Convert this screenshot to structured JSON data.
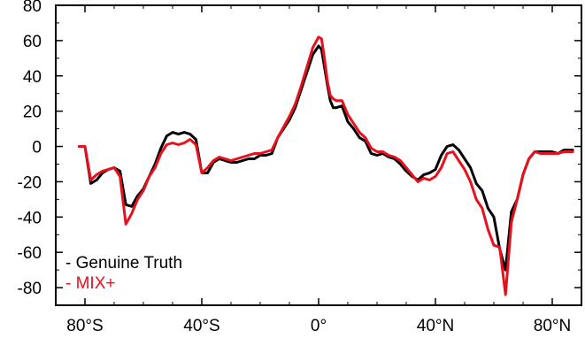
{
  "chart_data": {
    "type": "line",
    "title": "",
    "xlabel": "",
    "ylabel": "",
    "xlim": [
      -90,
      90
    ],
    "ylim": [
      -90,
      80
    ],
    "x_ticks": [
      -80,
      -40,
      0,
      40,
      80
    ],
    "x_tick_labels": [
      "80°S",
      "40°S",
      "0°",
      "40°N",
      "80°N"
    ],
    "y_ticks": [
      80,
      60,
      40,
      20,
      0,
      -20,
      -40,
      -60,
      -80
    ],
    "y_tick_labels": [
      "80",
      "60",
      "40",
      "20",
      "0",
      "-20",
      "-40",
      "-60",
      "-80"
    ],
    "grid": false,
    "legend_position": "bottom-left",
    "series": [
      {
        "name": "Genuine Truth",
        "color": "#000000",
        "points": [
          [
            -82,
            0
          ],
          [
            -80,
            0
          ],
          [
            -78,
            -21
          ],
          [
            -76,
            -19
          ],
          [
            -74,
            -15
          ],
          [
            -72,
            -13
          ],
          [
            -70,
            -12
          ],
          [
            -68,
            -14
          ],
          [
            -66,
            -33
          ],
          [
            -64,
            -34
          ],
          [
            -62,
            -28
          ],
          [
            -60,
            -24
          ],
          [
            -58,
            -17
          ],
          [
            -56,
            -10
          ],
          [
            -54,
            -1
          ],
          [
            -52,
            6
          ],
          [
            -50,
            8
          ],
          [
            -48,
            7
          ],
          [
            -46,
            8
          ],
          [
            -44,
            7
          ],
          [
            -42,
            4
          ],
          [
            -40,
            -15
          ],
          [
            -38,
            -15
          ],
          [
            -36,
            -9
          ],
          [
            -34,
            -7
          ],
          [
            -32,
            -8
          ],
          [
            -30,
            -9
          ],
          [
            -28,
            -9
          ],
          [
            -26,
            -8
          ],
          [
            -24,
            -7
          ],
          [
            -22,
            -7
          ],
          [
            -20,
            -5
          ],
          [
            -18,
            -5
          ],
          [
            -16,
            -4
          ],
          [
            -14,
            5
          ],
          [
            -12,
            10
          ],
          [
            -10,
            15
          ],
          [
            -8,
            22
          ],
          [
            -6,
            32
          ],
          [
            -4,
            42
          ],
          [
            -2,
            52
          ],
          [
            0,
            57
          ],
          [
            1,
            55
          ],
          [
            2,
            45
          ],
          [
            3,
            35
          ],
          [
            4,
            26
          ],
          [
            5,
            22
          ],
          [
            6,
            22
          ],
          [
            8,
            23
          ],
          [
            10,
            14
          ],
          [
            12,
            10
          ],
          [
            14,
            5
          ],
          [
            16,
            3
          ],
          [
            18,
            -4
          ],
          [
            20,
            -5
          ],
          [
            22,
            -4
          ],
          [
            24,
            -6
          ],
          [
            26,
            -7
          ],
          [
            28,
            -10
          ],
          [
            30,
            -14
          ],
          [
            32,
            -17
          ],
          [
            34,
            -19
          ],
          [
            36,
            -16
          ],
          [
            38,
            -15
          ],
          [
            40,
            -13
          ],
          [
            42,
            -5
          ],
          [
            44,
            0
          ],
          [
            46,
            1
          ],
          [
            48,
            -2
          ],
          [
            50,
            -7
          ],
          [
            52,
            -12
          ],
          [
            54,
            -21
          ],
          [
            56,
            -25
          ],
          [
            58,
            -35
          ],
          [
            60,
            -40
          ],
          [
            62,
            -58
          ],
          [
            64,
            -70
          ],
          [
            66,
            -37
          ],
          [
            68,
            -30
          ],
          [
            70,
            -16
          ],
          [
            72,
            -7
          ],
          [
            74,
            -3
          ],
          [
            76,
            -3
          ],
          [
            78,
            -3
          ],
          [
            80,
            -3
          ],
          [
            82,
            -4
          ],
          [
            84,
            -2
          ],
          [
            87,
            -2
          ]
        ]
      },
      {
        "name": "MIX+",
        "color": "#e8101c",
        "points": [
          [
            -82,
            0
          ],
          [
            -80,
            0
          ],
          [
            -78,
            -19
          ],
          [
            -76,
            -16
          ],
          [
            -74,
            -14
          ],
          [
            -72,
            -13
          ],
          [
            -70,
            -12
          ],
          [
            -68,
            -17
          ],
          [
            -66,
            -44
          ],
          [
            -64,
            -38
          ],
          [
            -62,
            -30
          ],
          [
            -60,
            -25
          ],
          [
            -58,
            -17
          ],
          [
            -56,
            -12
          ],
          [
            -54,
            -4
          ],
          [
            -52,
            1
          ],
          [
            -50,
            2
          ],
          [
            -48,
            1
          ],
          [
            -46,
            2
          ],
          [
            -44,
            4
          ],
          [
            -42,
            1
          ],
          [
            -40,
            -15
          ],
          [
            -38,
            -12
          ],
          [
            -36,
            -8
          ],
          [
            -34,
            -6
          ],
          [
            -32,
            -7
          ],
          [
            -30,
            -8
          ],
          [
            -28,
            -7
          ],
          [
            -26,
            -6
          ],
          [
            -24,
            -5
          ],
          [
            -22,
            -4
          ],
          [
            -20,
            -4
          ],
          [
            -18,
            -3
          ],
          [
            -16,
            -2
          ],
          [
            -14,
            5
          ],
          [
            -12,
            11
          ],
          [
            -10,
            17
          ],
          [
            -8,
            24
          ],
          [
            -6,
            34
          ],
          [
            -4,
            45
          ],
          [
            -2,
            56
          ],
          [
            0,
            62
          ],
          [
            1,
            61
          ],
          [
            2,
            50
          ],
          [
            3,
            37
          ],
          [
            4,
            29
          ],
          [
            5,
            27
          ],
          [
            6,
            26
          ],
          [
            8,
            26
          ],
          [
            10,
            18
          ],
          [
            12,
            13
          ],
          [
            14,
            8
          ],
          [
            16,
            5
          ],
          [
            18,
            -1
          ],
          [
            20,
            -3
          ],
          [
            22,
            -3
          ],
          [
            24,
            -5
          ],
          [
            26,
            -6
          ],
          [
            28,
            -8
          ],
          [
            30,
            -12
          ],
          [
            32,
            -16
          ],
          [
            34,
            -20
          ],
          [
            36,
            -18
          ],
          [
            38,
            -19
          ],
          [
            40,
            -17
          ],
          [
            42,
            -12
          ],
          [
            44,
            -4
          ],
          [
            46,
            -3
          ],
          [
            48,
            -8
          ],
          [
            50,
            -13
          ],
          [
            52,
            -20
          ],
          [
            54,
            -30
          ],
          [
            56,
            -35
          ],
          [
            58,
            -47
          ],
          [
            60,
            -56
          ],
          [
            62,
            -57
          ],
          [
            64,
            -84
          ],
          [
            66,
            -43
          ],
          [
            68,
            -30
          ],
          [
            70,
            -16
          ],
          [
            72,
            -7
          ],
          [
            74,
            -3
          ],
          [
            76,
            -4
          ],
          [
            78,
            -4
          ],
          [
            80,
            -4
          ],
          [
            82,
            -4
          ],
          [
            84,
            -3
          ],
          [
            87,
            -3
          ]
        ]
      }
    ]
  }
}
